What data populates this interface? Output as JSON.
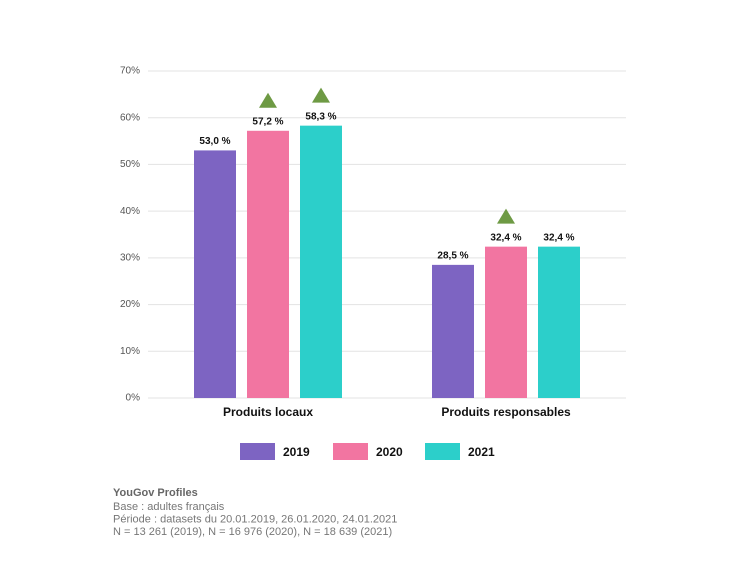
{
  "chart_data": {
    "type": "bar",
    "categories": [
      "Produits locaux",
      "Produits responsables"
    ],
    "series": [
      {
        "name": "2019",
        "color": "#7d64c2",
        "values": [
          53.0,
          28.5
        ],
        "value_labels": [
          "53,0 %",
          "28,5 %"
        ],
        "significant_increase": [
          false,
          false
        ]
      },
      {
        "name": "2020",
        "color": "#f275a1",
        "values": [
          57.2,
          32.4
        ],
        "value_labels": [
          "57,2 %",
          "32,4 %"
        ],
        "significant_increase": [
          true,
          true
        ]
      },
      {
        "name": "2021",
        "color": "#2ccfca",
        "values": [
          58.3,
          32.4
        ],
        "value_labels": [
          "58,3 %",
          "32,4 %"
        ],
        "significant_increase": [
          true,
          false
        ]
      }
    ],
    "marker_color": "#6e9a44",
    "ylim": [
      0,
      70
    ],
    "yticks": [
      {
        "value": 0,
        "label": "0%"
      },
      {
        "value": 10,
        "label": "10%"
      },
      {
        "value": 20,
        "label": "20%"
      },
      {
        "value": 30,
        "label": "30%"
      },
      {
        "value": 40,
        "label": "40%"
      },
      {
        "value": 50,
        "label": "50%"
      },
      {
        "value": 60,
        "label": "60%"
      },
      {
        "value": 70,
        "label": "70%"
      }
    ],
    "grid": true,
    "source_title": "YouGov Profiles",
    "source_lines": [
      "Base : adultes français",
      "Période : datasets du 20.01.2019, 26.01.2020, 24.01.2021",
      "N = 13 261 (2019), N = 16 976 (2020), N = 18 639 (2021)"
    ]
  }
}
